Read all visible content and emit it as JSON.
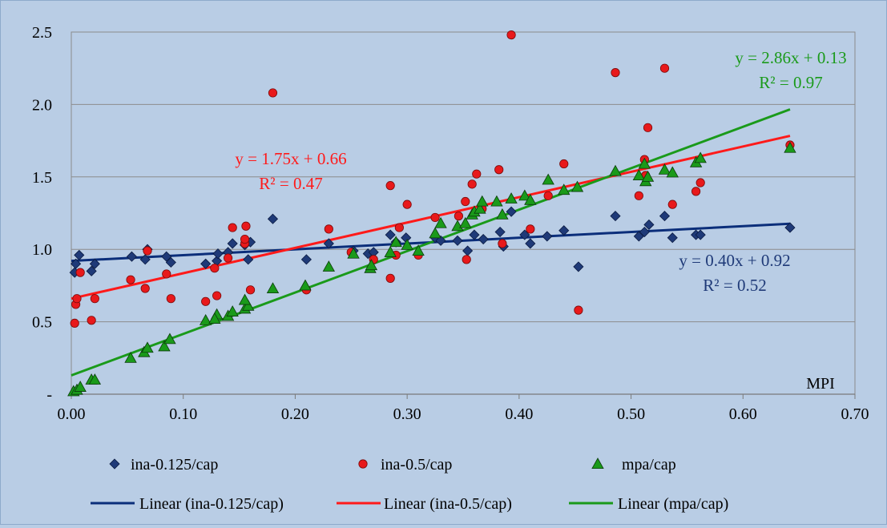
{
  "chart_data": {
    "type": "scatter",
    "xlabel": "MPI",
    "ylabel": "",
    "xlim": [
      0,
      0.7
    ],
    "ylim": [
      0,
      2.5
    ],
    "x_ticks": [
      {
        "value": 0.0,
        "label": "0.00"
      },
      {
        "value": 0.1,
        "label": "0.10"
      },
      {
        "value": 0.2,
        "label": "0.20"
      },
      {
        "value": 0.3,
        "label": "0.30"
      },
      {
        "value": 0.4,
        "label": "0.40"
      },
      {
        "value": 0.5,
        "label": "0.50"
      },
      {
        "value": 0.6,
        "label": "0.60"
      },
      {
        "value": 0.7,
        "label": "0.70"
      }
    ],
    "y_ticks": [
      {
        "value": 0.0,
        "label": "-"
      },
      {
        "value": 0.5,
        "label": "0.5"
      },
      {
        "value": 1.0,
        "label": "1.0"
      },
      {
        "value": 1.5,
        "label": "1.5"
      },
      {
        "value": 2.0,
        "label": "2.0"
      },
      {
        "value": 2.5,
        "label": "2.5"
      }
    ],
    "grid": "horizontal",
    "legend_position": "bottom",
    "series": [
      {
        "name": "ina-0.125/cap",
        "marker": "diamond",
        "color": "#1f3a78",
        "x": [
          0.003,
          0.004,
          0.007,
          0.018,
          0.021,
          0.054,
          0.066,
          0.068,
          0.085,
          0.089,
          0.12,
          0.13,
          0.131,
          0.14,
          0.144,
          0.155,
          0.158,
          0.16,
          0.18,
          0.21,
          0.23,
          0.252,
          0.265,
          0.27,
          0.285,
          0.29,
          0.299,
          0.325,
          0.33,
          0.345,
          0.354,
          0.36,
          0.368,
          0.383,
          0.386,
          0.393,
          0.405,
          0.41,
          0.425,
          0.44,
          0.453,
          0.486,
          0.507,
          0.512,
          0.516,
          0.53,
          0.537,
          0.558,
          0.562,
          0.642
        ],
        "y": [
          0.84,
          0.9,
          0.96,
          0.85,
          0.9,
          0.95,
          0.93,
          1.0,
          0.95,
          0.91,
          0.9,
          0.92,
          0.97,
          0.98,
          1.04,
          1.03,
          0.93,
          1.05,
          1.21,
          0.93,
          1.04,
          0.99,
          0.97,
          0.98,
          1.1,
          1.05,
          1.08,
          1.08,
          1.06,
          1.06,
          0.99,
          1.1,
          1.07,
          1.12,
          1.02,
          1.26,
          1.1,
          1.04,
          1.09,
          1.13,
          0.88,
          1.23,
          1.09,
          1.12,
          1.17,
          1.23,
          1.08,
          1.1,
          1.1,
          1.15
        ]
      },
      {
        "name": "ina-0.5/cap",
        "marker": "circle",
        "color": "#e8191b",
        "x": [
          0.003,
          0.004,
          0.005,
          0.008,
          0.018,
          0.021,
          0.053,
          0.066,
          0.068,
          0.085,
          0.089,
          0.12,
          0.128,
          0.13,
          0.14,
          0.144,
          0.155,
          0.155,
          0.156,
          0.16,
          0.18,
          0.21,
          0.23,
          0.25,
          0.27,
          0.285,
          0.285,
          0.29,
          0.293,
          0.3,
          0.31,
          0.325,
          0.346,
          0.352,
          0.353,
          0.358,
          0.362,
          0.367,
          0.382,
          0.385,
          0.393,
          0.41,
          0.426,
          0.44,
          0.453,
          0.486,
          0.507,
          0.512,
          0.513,
          0.515,
          0.53,
          0.537,
          0.558,
          0.562,
          0.642
        ],
        "y": [
          0.49,
          0.62,
          0.66,
          0.84,
          0.51,
          0.66,
          0.79,
          0.73,
          0.99,
          0.83,
          0.66,
          0.64,
          0.87,
          0.68,
          0.94,
          1.15,
          1.04,
          1.07,
          1.16,
          0.72,
          2.08,
          0.72,
          1.14,
          0.98,
          0.93,
          0.8,
          1.44,
          0.96,
          1.15,
          1.31,
          0.96,
          1.22,
          1.23,
          1.33,
          0.93,
          1.45,
          1.52,
          1.28,
          1.55,
          1.04,
          2.48,
          1.14,
          1.37,
          1.59,
          0.58,
          2.22,
          1.37,
          1.62,
          1.51,
          1.84,
          2.25,
          1.31,
          1.4,
          1.46,
          1.72
        ]
      },
      {
        "name": "mpa/cap",
        "marker": "triangle",
        "color": "#1a9a1a",
        "x": [
          0.002,
          0.005,
          0.008,
          0.018,
          0.021,
          0.053,
          0.065,
          0.068,
          0.083,
          0.088,
          0.12,
          0.13,
          0.128,
          0.14,
          0.144,
          0.155,
          0.158,
          0.155,
          0.18,
          0.209,
          0.23,
          0.252,
          0.267,
          0.268,
          0.285,
          0.29,
          0.3,
          0.31,
          0.325,
          0.33,
          0.345,
          0.352,
          0.358,
          0.36,
          0.365,
          0.367,
          0.38,
          0.385,
          0.393,
          0.405,
          0.41,
          0.426,
          0.44,
          0.452,
          0.486,
          0.507,
          0.512,
          0.513,
          0.515,
          0.53,
          0.537,
          0.558,
          0.562,
          0.642
        ],
        "y": [
          0.02,
          0.03,
          0.05,
          0.1,
          0.1,
          0.25,
          0.29,
          0.32,
          0.33,
          0.38,
          0.51,
          0.55,
          0.52,
          0.54,
          0.57,
          0.59,
          0.61,
          0.65,
          0.73,
          0.75,
          0.88,
          0.97,
          0.87,
          0.89,
          0.98,
          1.05,
          1.03,
          0.99,
          1.11,
          1.18,
          1.16,
          1.18,
          1.24,
          1.26,
          1.28,
          1.33,
          1.33,
          1.24,
          1.35,
          1.37,
          1.34,
          1.48,
          1.41,
          1.43,
          1.54,
          1.51,
          1.59,
          1.47,
          1.5,
          1.55,
          1.53,
          1.6,
          1.63,
          1.7
        ]
      }
    ],
    "trendlines": [
      {
        "name": "Linear (ina-0.125/cap)",
        "color": "#0b2e7a",
        "slope": 0.4,
        "intercept": 0.92,
        "x_range": [
          0.0,
          0.642
        ],
        "equation": "y = 0.40x + 0.92",
        "r2": "R² = 0.52",
        "label_color": "#1f3a78"
      },
      {
        "name": "Linear (ina-0.5/cap)",
        "color": "#ff1a1a",
        "slope": 1.75,
        "intercept": 0.66,
        "x_range": [
          0.0,
          0.642
        ],
        "equation": "y = 1.75x + 0.66",
        "r2": "R² = 0.47",
        "label_color": "#ff1a1a"
      },
      {
        "name": "Linear (mpa/cap)",
        "color": "#1a9a1a",
        "slope": 2.86,
        "intercept": 0.13,
        "x_range": [
          0.0,
          0.642
        ],
        "equation": "y = 2.86x + 0.13",
        "r2": "R² = 0.97",
        "label_color": "#1a9a1a"
      }
    ]
  }
}
